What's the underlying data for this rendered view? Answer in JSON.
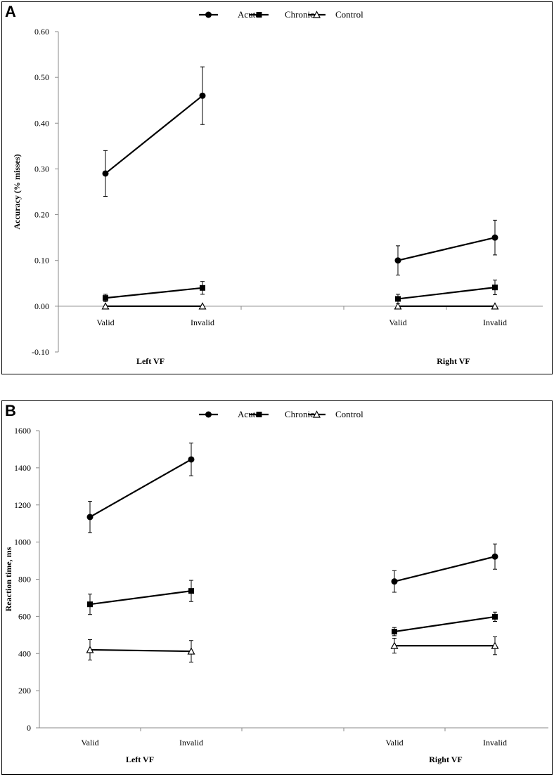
{
  "panels": [
    {
      "letter": "A",
      "chart_data": {
        "type": "line",
        "title": "",
        "xlabel": "",
        "ylabel": "Accuracy (% misses)",
        "ylim": [
          -0.1,
          0.6
        ],
        "yticks": [
          "-0.10",
          "0.00",
          "0.10",
          "0.20",
          "0.30",
          "0.40",
          "0.50",
          "0.60"
        ],
        "categories": [
          "Valid",
          "Invalid",
          "Valid",
          "Invalid"
        ],
        "groups": [
          "Left VF",
          "Right VF"
        ],
        "grid": false,
        "legend_position": "top-center",
        "series": [
          {
            "name": "Acute",
            "marker": "circle",
            "values": [
              [
                0.29,
                0.46
              ],
              [
                0.1,
                0.15
              ]
            ],
            "errors": [
              [
                0.05,
                0.063
              ],
              [
                0.032,
                0.038
              ]
            ]
          },
          {
            "name": "Chronic",
            "marker": "square",
            "values": [
              [
                0.018,
                0.04
              ],
              [
                0.016,
                0.041
              ]
            ],
            "errors": [
              [
                0.008,
                0.014
              ],
              [
                0.01,
                0.016
              ]
            ]
          },
          {
            "name": "Control",
            "marker": "triangle",
            "values": [
              [
                0.0,
                0.0
              ],
              [
                0.0,
                0.0
              ]
            ],
            "errors": [
              [
                0,
                0
              ],
              [
                0,
                0
              ]
            ]
          }
        ]
      }
    },
    {
      "letter": "B",
      "chart_data": {
        "type": "line",
        "title": "",
        "xlabel": "",
        "ylabel": "Reaction time, ms",
        "ylim": [
          0,
          1600
        ],
        "yticks": [
          "0",
          "200",
          "400",
          "600",
          "800",
          "1000",
          "1200",
          "1400",
          "1600"
        ],
        "categories": [
          "Valid",
          "Invalid",
          "Valid",
          "Invalid"
        ],
        "groups": [
          "Left VF",
          "Right VF"
        ],
        "grid": false,
        "legend_position": "top-center",
        "series": [
          {
            "name": "Acute",
            "marker": "circle",
            "values": [
              [
                1135,
                1445
              ],
              [
                788,
                922
              ]
            ],
            "errors": [
              [
                85,
                88
              ],
              [
                58,
                68
              ]
            ]
          },
          {
            "name": "Chronic",
            "marker": "square",
            "values": [
              [
                665,
                737
              ],
              [
                518,
                598
              ]
            ],
            "errors": [
              [
                55,
                57
              ],
              [
                22,
                25
              ]
            ]
          },
          {
            "name": "Control",
            "marker": "triangle",
            "values": [
              [
                420,
                412
              ],
              [
                442,
                442
              ]
            ],
            "errors": [
              [
                55,
                58
              ],
              [
                40,
                48
              ]
            ]
          }
        ]
      }
    }
  ]
}
